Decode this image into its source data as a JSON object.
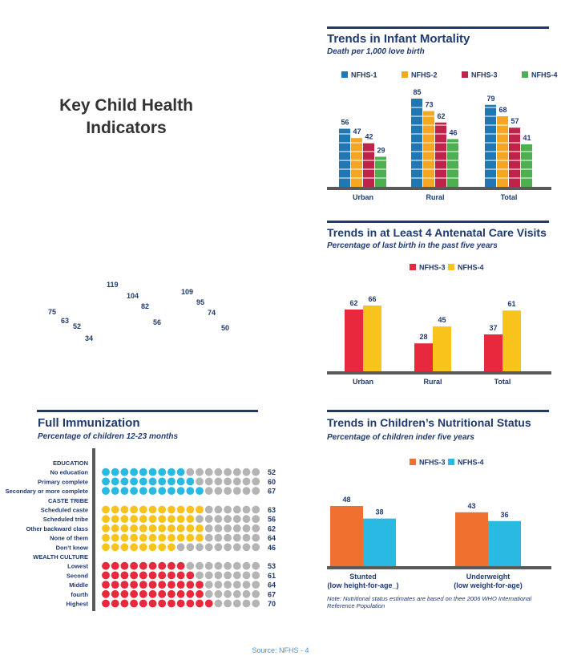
{
  "page": {
    "title_line1": "Key Child Health",
    "title_line2": "Indicators",
    "source": "Source: NFHS - 4",
    "note": "Note: Nutritional status estimates are based on thee 2006 WHO International Reference Population"
  },
  "colors": {
    "navy": "#1f3a6e",
    "nfhs1": "#1f77b4",
    "nfhs2": "#f5a623",
    "nfhs3": "#c0234a",
    "nfhs4": "#4caf50",
    "red": "#e8283c",
    "yellow": "#f8c31b",
    "orange": "#f07030",
    "cyan": "#29b9e3",
    "grey": "#b4b4b4"
  },
  "chart_data": [
    {
      "id": "infant_mortality",
      "type": "bar",
      "title": "Trends in Infant Mortality",
      "subtitle": "Death per 1,000 love birth",
      "categories": [
        "Urban",
        "Rural",
        "Total"
      ],
      "series": [
        {
          "name": "NFHS-1",
          "values": [
            56,
            85,
            79
          ]
        },
        {
          "name": "NFHS-2",
          "values": [
            47,
            73,
            68
          ]
        },
        {
          "name": "NFHS-3",
          "values": [
            42,
            62,
            57
          ]
        },
        {
          "name": "NFHS-4",
          "values": [
            29,
            46,
            41
          ]
        }
      ],
      "ylim": [
        0,
        85
      ],
      "legend": "top"
    },
    {
      "id": "anc_visits",
      "type": "bar",
      "title": "Trends in at Least 4 Antenatal Care Visits",
      "subtitle": "Percentage of last birth in the past five years",
      "categories": [
        "Urban",
        "Rural",
        "Total"
      ],
      "series": [
        {
          "name": "NFHS-3",
          "values": [
            62,
            28,
            37
          ]
        },
        {
          "name": "NFHS-4",
          "values": [
            66,
            45,
            61
          ]
        }
      ],
      "ylim": [
        0,
        66
      ],
      "legend": "top"
    },
    {
      "id": "nutritional_status",
      "type": "bar",
      "title": "Trends in Children’s Nutritional Status",
      "subtitle": "Percentage of children inder five years",
      "categories": [
        [
          "Stunted",
          "(low height-for-age_)"
        ],
        [
          "Underweight",
          "(low weight-for-age)"
        ]
      ],
      "series": [
        {
          "name": "NFHS-3",
          "values": [
            48,
            43
          ]
        },
        {
          "name": "NFHS-4",
          "values": [
            38,
            36
          ]
        }
      ],
      "ylim": [
        0,
        48
      ],
      "legend": "top"
    },
    {
      "id": "full_immunization",
      "type": "bar",
      "title": "Full Immunization",
      "subtitle": "Percentage of children 12-23 months",
      "groups": [
        {
          "name": "EDUCATION",
          "rows": [
            {
              "label": "No education",
              "value": 52
            },
            {
              "label": "Primary complete",
              "value": 60
            },
            {
              "label": "Secondary or more complete",
              "value": 67
            }
          ]
        },
        {
          "name": "CASTE TRIBE",
          "rows": [
            {
              "label": "Scheduled caste",
              "value": 63
            },
            {
              "label": "Scheduled tribe",
              "value": 56
            },
            {
              "label": "Other backward class",
              "value": 62
            },
            {
              "label": "None of them",
              "value": 64
            },
            {
              "label": "Don’t know",
              "value": 46
            }
          ]
        },
        {
          "name": "WEALTH CULTURE",
          "rows": [
            {
              "label": "Lowest",
              "value": 53
            },
            {
              "label": "Second",
              "value": 61
            },
            {
              "label": "Middle",
              "value": 64
            },
            {
              "label": "fourth",
              "value": 67
            },
            {
              "label": "Highest",
              "value": 70
            }
          ]
        }
      ],
      "dots_per_row": 17,
      "percent_per_dot": 5.88
    },
    {
      "id": "orphan_labels",
      "type": "scatter",
      "labels": [
        "75",
        "63",
        "52",
        "34",
        "119",
        "104",
        "82",
        "56",
        "109",
        "95",
        "74",
        "50"
      ]
    }
  ]
}
